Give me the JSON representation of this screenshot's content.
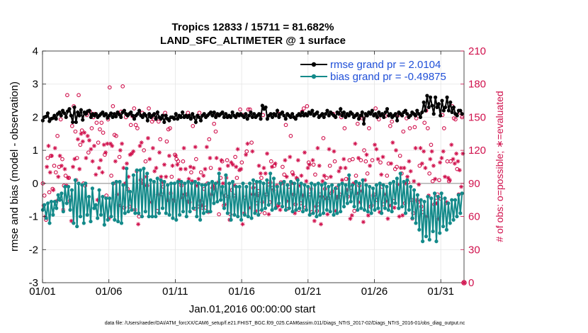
{
  "chart_data": {
    "type": "line",
    "title_line1": "Tropics 12833 / 15711 = 81.682%",
    "title_line2": "LAND_SFC_ALTIMETER @ 1 surface",
    "xlabel": "Jan.01,2016 00:00:00 start",
    "ylabel": "rmse and bias (model - observation)",
    "ylabel_right": "# of obs: o=possible; ∗=evaluated",
    "footer": "data file: /Users/raeder/DAI/ATM_forcXX/CAM6_setup/f.e21.FHIST_BGC.f09_025.CAM6assim.011/Diags_NTrS_2017-02/Diags_NTrS_2016-01/obs_diag_output.nc",
    "xlim": [
      0,
      31.75
    ],
    "ylim": [
      -3,
      4
    ],
    "ylim_right": [
      0,
      210
    ],
    "x_ticks": [
      0,
      5,
      10,
      15,
      20,
      25,
      30
    ],
    "x_tick_labels": [
      "01/01",
      "01/06",
      "01/11",
      "01/16",
      "01/21",
      "01/26",
      "01/31"
    ],
    "y_ticks": [
      -3,
      -2,
      -1,
      0,
      1,
      2,
      3,
      4
    ],
    "y_tick_labels": [
      "-3",
      "-2",
      "-1",
      "0",
      "1",
      "2",
      "3",
      "4"
    ],
    "y_right_ticks": [
      0,
      30,
      60,
      90,
      120,
      150,
      180,
      210
    ],
    "y_right_tick_labels": [
      "0",
      "30",
      "60",
      "90",
      "120",
      "150",
      "180",
      "210"
    ],
    "grid": true,
    "zero_line": 0,
    "legend_location": "top-right",
    "colors": {
      "rmse": "#000000",
      "bias": "#138a8a",
      "obs": "#d0104c",
      "zero": "#b4b4b4",
      "grid": "#e4e4e4"
    },
    "series": [
      {
        "name": "rmse grand pr = 2.0104",
        "values": [
          1.9,
          2.0,
          2.02,
          2.12,
          1.88,
          1.95,
          1.97,
          2.05,
          1.95,
          2.1,
          2.15,
          2.05,
          2.2,
          2.12,
          2.0,
          2.18,
          2.25,
          2.05,
          1.85,
          2.3,
          1.85,
          2.15,
          2.05,
          2.22,
          1.92,
          2.15,
          2.1,
          2.18,
          2.2,
          2.0,
          2.1,
          2.05,
          2.1,
          2.0,
          2.05,
          2.1,
          2.15,
          2.05,
          2.1,
          1.98,
          2.05,
          2.12,
          2.0,
          2.1,
          2.02,
          2.15,
          2.08,
          2.0,
          2.15,
          2.2,
          2.1,
          2.05,
          2.1,
          2.15,
          2.05,
          1.95,
          2.05,
          2.1,
          2.2,
          2.05,
          2.0,
          2.1,
          2.05,
          1.9,
          2.1,
          2.0,
          2.05,
          2.1,
          1.95,
          2.15,
          2.0,
          1.95,
          2.05,
          1.85,
          2.05,
          1.95,
          1.9,
          2.0,
          2.0,
          1.95,
          2.1,
          1.95,
          2.05,
          2.0,
          2.15,
          2.0,
          2.05,
          2.0,
          2.05,
          1.95,
          2.1,
          2.0,
          1.85,
          2.05,
          2.0,
          1.9,
          2.05,
          2.1,
          2.0,
          2.05,
          2.1,
          2.15,
          2.05,
          2.15,
          2.0,
          2.1,
          2.05,
          2.1,
          2.15,
          2.0,
          2.1,
          2.0,
          2.05,
          2.0,
          2.15,
          2.05,
          2.0,
          2.1,
          2.05,
          2.1,
          2.05,
          2.0,
          2.1,
          1.95,
          2.05,
          2.15,
          2.0,
          2.1,
          2.0,
          2.05,
          2.1,
          1.95,
          2.35,
          2.25,
          2.3,
          1.95,
          2.05,
          2.1,
          2.0,
          2.1,
          2.05,
          2.2,
          2.0,
          2.1,
          2.15,
          2.05,
          1.95,
          2.1,
          2.05,
          2.0,
          2.1,
          2.0,
          1.95,
          2.05,
          2.1,
          2.05,
          2.15,
          2.05,
          2.1,
          2.05,
          2.15,
          2.1,
          2.2,
          2.05,
          2.1,
          2.15,
          2.0,
          2.05,
          2.1,
          2.0,
          2.1,
          2.2,
          2.05,
          2.15,
          2.1,
          2.05,
          2.0,
          2.15,
          2.1,
          2.25,
          2.05,
          2.15,
          2.0,
          2.1,
          2.05,
          2.15,
          2.1,
          2.0,
          2.05,
          2.1,
          1.95,
          2.05,
          2.15,
          1.8,
          2.1,
          2.05,
          2.15,
          2.1,
          2.2,
          2.05,
          2.1,
          2.0,
          2.15,
          2.05,
          2.1,
          2.0,
          2.15,
          2.25,
          2.05,
          2.1,
          2.0,
          2.05,
          2.1,
          1.9,
          2.15,
          2.1,
          2.05,
          2.15,
          2.2,
          2.1,
          2.0,
          2.05,
          2.15,
          2.1,
          2.05,
          2.2,
          2.1,
          2.0,
          2.15,
          2.45,
          2.2,
          2.65,
          2.3,
          2.6,
          2.35,
          2.1,
          2.6,
          2.3,
          2.4,
          2.05,
          2.5,
          2.2,
          2.3,
          2.6,
          2.2,
          2.45,
          2.15,
          2.3,
          2.1,
          2.05,
          2.2,
          2.2,
          2.1
        ]
      },
      {
        "name": "bias grand pr = -0.49875",
        "values": [
          -0.8,
          -0.65,
          -1.05,
          -0.6,
          -1.2,
          -0.55,
          -0.95,
          -0.55,
          -0.75,
          -0.35,
          -0.5,
          -0.3,
          -0.85,
          -0.1,
          -0.6,
          -0.1,
          -0.8,
          -0.2,
          -1.2,
          0.1,
          -1.3,
          0.0,
          -1.0,
          -0.05,
          -1.2,
          0.0,
          -0.95,
          -0.4,
          -1.15,
          -0.15,
          -0.75,
          -0.65,
          -1.05,
          -0.2,
          -0.95,
          -0.4,
          -1.25,
          -0.45,
          -1.1,
          -0.45,
          -1.0,
          0.0,
          -1.1,
          0.05,
          -1.15,
          0.05,
          -1.2,
          -0.05,
          -0.9,
          0.45,
          -0.85,
          -0.25,
          -0.8,
          0.25,
          -0.9,
          0.4,
          -0.9,
          0.4,
          -1.0,
          0.45,
          -0.85,
          0.3,
          -1.0,
          0.1,
          -1.0,
          0.05,
          -1.0,
          0.15,
          -0.9,
          0.1,
          -0.75,
          0.05,
          -0.9,
          -0.05,
          -0.95,
          0.0,
          -1.05,
          0.0,
          -1.1,
          0.05,
          -0.95,
          0.05,
          -0.85,
          0.0,
          -1.0,
          0.05,
          -0.85,
          0.0,
          -0.75,
          0.05,
          -1.0,
          0.0,
          -1.1,
          -0.05,
          -0.9,
          -0.05,
          -0.85,
          0.0,
          -0.85,
          0.05,
          -0.6,
          0.0,
          -0.55,
          0.3,
          -0.5,
          -0.1,
          -0.75,
          0.25,
          -0.9,
          0.0,
          -1.1,
          0.05,
          -0.95,
          -0.1,
          -1.0,
          -0.1,
          -1.1,
          0.0,
          -0.95,
          -0.1,
          -1.0,
          0.0,
          -1.05,
          0.1,
          -0.9,
          0.05,
          -0.95,
          0.05,
          -0.8,
          0.0,
          -0.75,
          0.1,
          -0.65,
          0.3,
          -0.8,
          0.15,
          -0.75,
          -0.1,
          -0.6,
          0.0,
          -0.7,
          0.05,
          -0.8,
          -0.05,
          -0.75,
          0.05,
          -0.85,
          0.0,
          -0.8,
          0.1,
          -0.75,
          0.0,
          -0.85,
          -0.05,
          -0.8,
          -0.1,
          -0.95,
          0.0,
          -0.9,
          -0.05,
          -1.0,
          0.0,
          -0.95,
          -0.05,
          -0.9,
          0.0,
          -0.8,
          -0.1,
          -0.85,
          -0.05,
          -0.95,
          -0.15,
          -0.9,
          -0.05,
          -0.85,
          0.0,
          -0.7,
          -0.05,
          -0.6,
          0.25,
          -0.55,
          -0.05,
          -0.7,
          0.05,
          -0.8,
          0.0,
          -0.75,
          0.1,
          -0.8,
          -0.05,
          -0.85,
          -0.1,
          -0.9,
          -0.15,
          -0.8,
          -0.05,
          -0.75,
          0.0,
          -0.9,
          -0.05,
          -0.75,
          -0.1,
          -0.8,
          0.0,
          -0.85,
          0.05,
          -0.6,
          0.15,
          -0.75,
          0.3,
          -0.7,
          0.05,
          -0.9,
          0.1,
          -0.8,
          -0.1,
          -1.05,
          -0.2,
          -1.2,
          -0.35,
          -1.4,
          -0.5,
          -1.75,
          -0.55,
          -1.6,
          -0.4,
          -1.7,
          -0.45,
          -1.45,
          -0.3,
          -1.75,
          -0.4,
          -1.5,
          -0.3,
          -1.3,
          -0.45,
          -1.4,
          -0.6,
          -1.2,
          -0.5,
          -1.1,
          -0.5,
          -1.0,
          -0.35,
          -0.9,
          -0.3
        ]
      }
    ],
    "obs_possible": [
      90,
      79,
      57,
      113,
      82,
      115,
      85,
      106,
      100,
      133,
      105,
      148,
      112,
      88,
      97,
      170,
      95,
      77,
      142,
      160,
      137,
      113,
      170,
      125,
      138,
      90,
      88,
      152,
      118,
      155,
      140,
      150,
      153,
      145,
      127,
      139,
      145,
      136,
      116,
      79,
      148,
      177,
      97,
      160,
      134,
      133,
      154,
      114,
      155,
      178,
      68,
      150,
      85,
      69,
      143,
      151,
      158,
      143,
      140,
      60,
      93,
      154,
      120,
      110,
      88,
      158,
      151,
      146,
      148,
      152,
      65,
      146,
      130,
      80,
      87,
      154,
      128,
      139,
      140,
      96,
      74,
      116,
      112,
      110,
      91,
      88,
      110,
      80,
      80,
      154,
      73,
      100,
      142,
      67,
      112,
      69,
      154,
      100,
      68,
      85,
      68,
      90,
      130,
      104,
      86,
      144,
      137,
      152,
      62,
      95,
      110,
      70,
      79,
      111,
      78,
      62,
      84,
      79,
      114,
      95,
      152,
      157,
      109,
      152,
      77,
      119,
      157,
      157,
      127,
      86,
      88,
      72,
      83,
      64,
      95,
      152,
      63,
      80,
      89,
      73,
      110,
      86,
      106,
      68,
      70,
      153,
      91,
      105,
      98,
      143,
      67,
      87,
      133,
      100,
      80,
      71,
      94,
      66,
      72,
      155,
      158,
      68,
      160,
      109,
      80,
      64,
      107,
      98,
      65,
      71,
      80,
      78,
      131,
      85,
      95,
      77,
      106,
      81,
      153,
      110,
      86,
      78,
      80,
      150,
      153,
      140,
      94,
      78,
      111,
      86,
      112,
      65,
      97,
      144,
      88,
      111,
      149,
      120,
      110,
      99,
      140,
      69,
      111,
      80,
      158,
      75,
      148,
      109,
      87,
      71,
      151,
      97,
      108,
      142,
      146,
      74,
      103,
      105,
      152,
      115,
      99,
      137,
      72,
      149,
      91,
      140,
      75,
      63,
      141,
      149,
      73,
      106,
      69,
      64,
      145,
      156,
      140,
      99,
      125,
      92,
      71,
      77,
      80,
      93,
      76,
      152,
      140,
      72,
      110,
      92,
      110,
      160,
      149,
      148,
      103,
      80,
      154,
      150
    ],
    "obs_evaluated": [
      70,
      60,
      105,
      124,
      100,
      115,
      84,
      122,
      74,
      96,
      115,
      106,
      66,
      103,
      88,
      95,
      74,
      56,
      105,
      112,
      93,
      130,
      103,
      135,
      128,
      136,
      113,
      133,
      129,
      121,
      110,
      124,
      98,
      75,
      104,
      111,
      100,
      125,
      118,
      126,
      58,
      126,
      124,
      90,
      110,
      80,
      70,
      120,
      126,
      104,
      90,
      108,
      96,
      116,
      117,
      119,
      66,
      101,
      53,
      124,
      127,
      90,
      88,
      96,
      131,
      112,
      73,
      122,
      101,
      104,
      80,
      118,
      96,
      91,
      107,
      96,
      75,
      115,
      81,
      106,
      75,
      115,
      107,
      93,
      103,
      77,
      122,
      103,
      74,
      94,
      105,
      92,
      104,
      123,
      88,
      94,
      74,
      70,
      97,
      103,
      123,
      64,
      113,
      80,
      88,
      85,
      113,
      91,
      103,
      111,
      90,
      71,
      95,
      106,
      57,
      109,
      107,
      88,
      105,
      121,
      102,
      103,
      53,
      63,
      116,
      126,
      68,
      80,
      119,
      80,
      65,
      79,
      106,
      99,
      73,
      104,
      99,
      117,
      62,
      91,
      105,
      84,
      108,
      88,
      70,
      66,
      90,
      91,
      111,
      96,
      74,
      114,
      90,
      98,
      63,
      95,
      111,
      88,
      97,
      79,
      118,
      92,
      104,
      107,
      85,
      111,
      56,
      69,
      122,
      106,
      53,
      92,
      97,
      76,
      62,
      121,
      96,
      83,
      119,
      65,
      77,
      101,
      104,
      93,
      112,
      104,
      84,
      94,
      58,
      61,
      90,
      126,
      81,
      113,
      73,
      83,
      55,
      93,
      116,
      61,
      106,
      70,
      79,
      125,
      121,
      112,
      64,
      98,
      114,
      80,
      74,
      58,
      70,
      108,
      127,
      68,
      120,
      89,
      60,
      104,
      61,
      104,
      90,
      96,
      110,
      101,
      58,
      92,
      122,
      75,
      89,
      122,
      108,
      119,
      104,
      60,
      79,
      112,
      119,
      106,
      94,
      72,
      58,
      109,
      113,
      119,
      96,
      73,
      95,
      93,
      125,
      112,
      108,
      117,
      110,
      102,
      87,
      117
    ]
  },
  "legend": {
    "rmse_label": "rmse grand pr = 2.0104",
    "bias_label": "bias grand pr = -0.49875"
  }
}
